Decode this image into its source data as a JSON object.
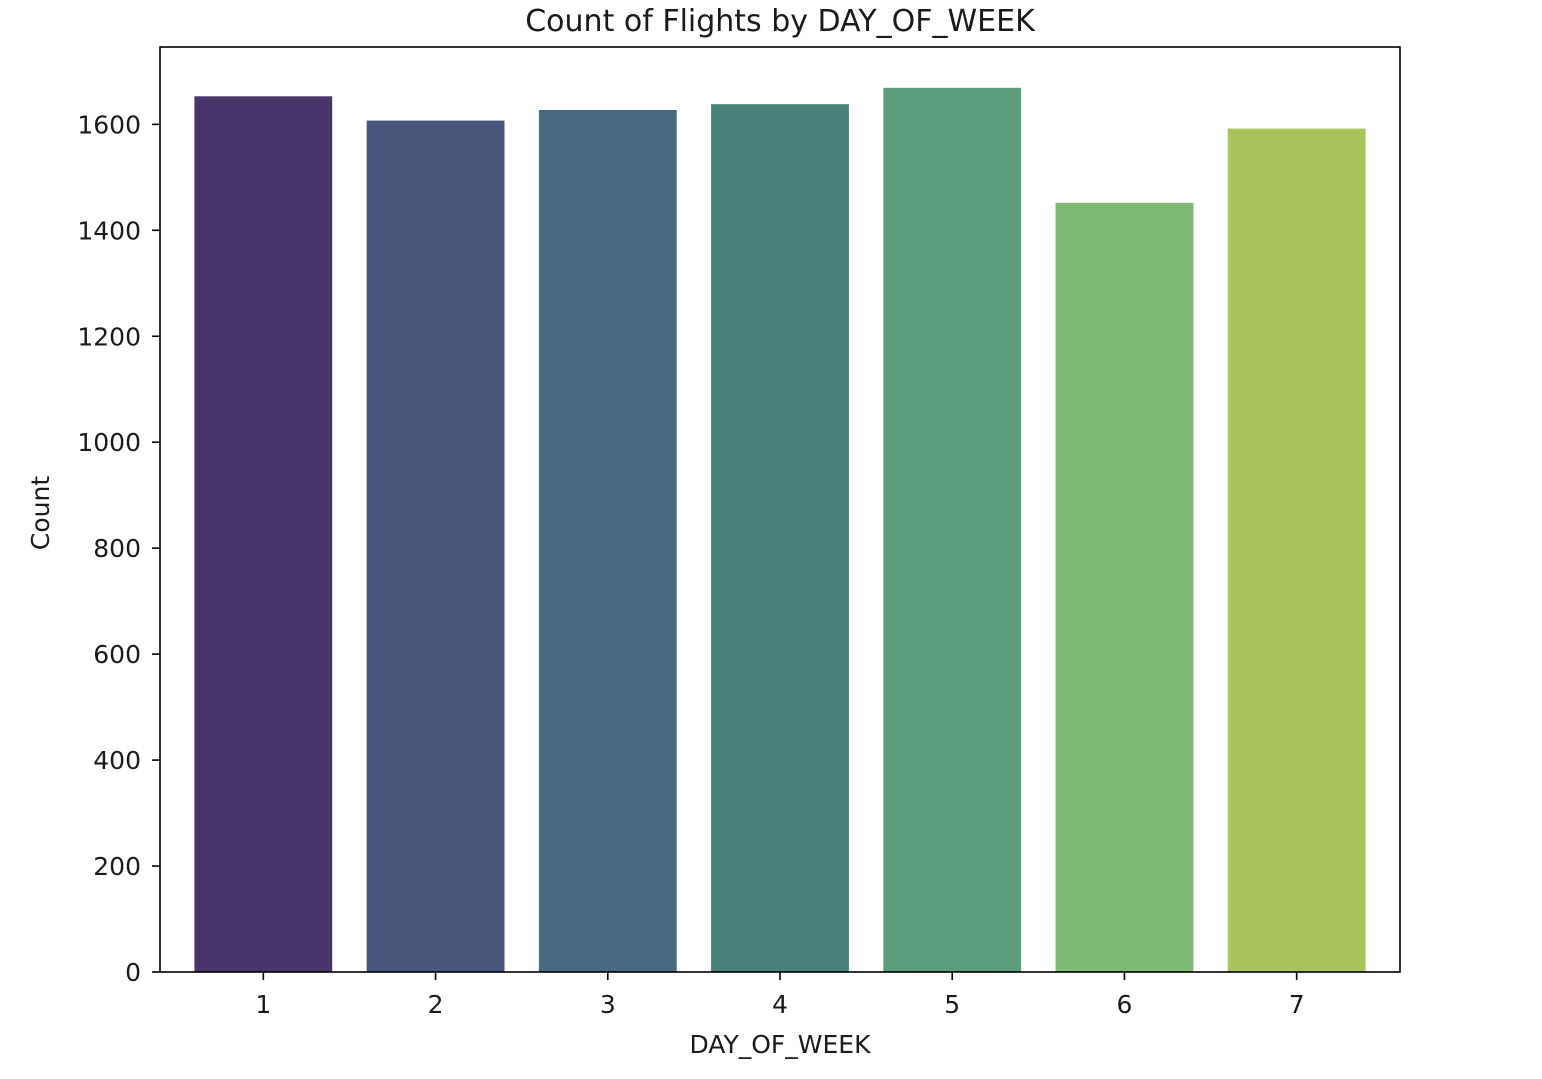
{
  "chart_data": {
    "type": "bar",
    "title": "Count of Flights by DAY_OF_WEEK",
    "xlabel": "DAY_OF_WEEK",
    "ylabel": "Count",
    "categories": [
      "1",
      "2",
      "3",
      "4",
      "5",
      "6",
      "7"
    ],
    "values": [
      1653,
      1607,
      1627,
      1638,
      1669,
      1452,
      1592
    ],
    "ylim": [
      0,
      1746
    ],
    "yticks": [
      0,
      200,
      400,
      600,
      800,
      1000,
      1200,
      1400,
      1600
    ],
    "grid": false,
    "colors": [
      "#48366b",
      "#48567e",
      "#476b7e",
      "#468079",
      "#5c9d7e",
      "#80b875",
      "#a9c45b"
    ]
  }
}
